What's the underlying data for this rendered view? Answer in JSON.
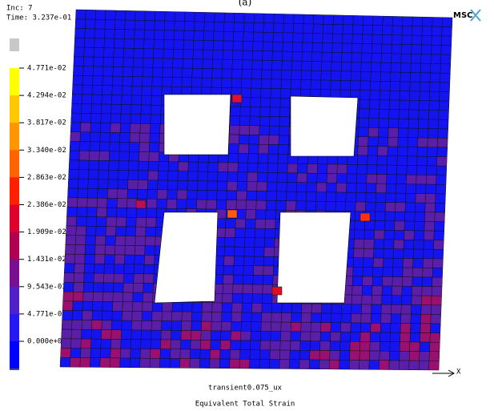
{
  "caption": "(a)",
  "header": {
    "inc": "Inc:  7",
    "time": "Time:  3.237e-01",
    "logo": "MSC"
  },
  "legend": {
    "labels": [
      "4.771e-02",
      "4.294e-02",
      "3.817e-02",
      "3.340e-02",
      "2.863e-02",
      "2.386e-02",
      "1.909e-02",
      "1.431e-02",
      "9.543e-03",
      "4.771e-03",
      "0.000e+00"
    ]
  },
  "axis": {
    "x": "X"
  },
  "footer": {
    "job": "transient0.075_ux",
    "quantity": "Equivalent Total Strain"
  }
}
